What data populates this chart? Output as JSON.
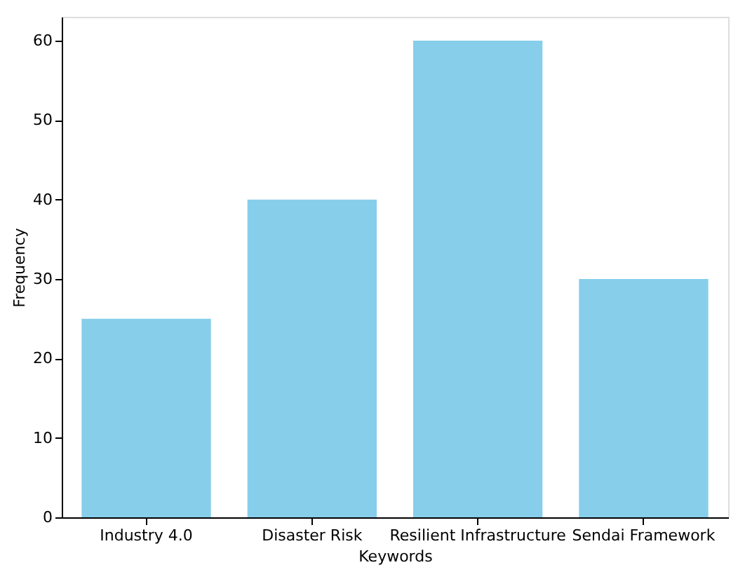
{
  "chart_data": {
    "type": "bar",
    "xlabel": "Keywords",
    "ylabel": "Frequency",
    "categories": [
      "Industry 4.0",
      "Disaster Risk",
      "Resilient Infrastructure",
      "Sendai Framework"
    ],
    "values": [
      25,
      40,
      60,
      30
    ],
    "color": "#87ceeb",
    "ylim": [
      0,
      63
    ],
    "yticks": [
      0,
      10,
      20,
      30,
      40,
      50,
      60
    ],
    "grid": false
  }
}
